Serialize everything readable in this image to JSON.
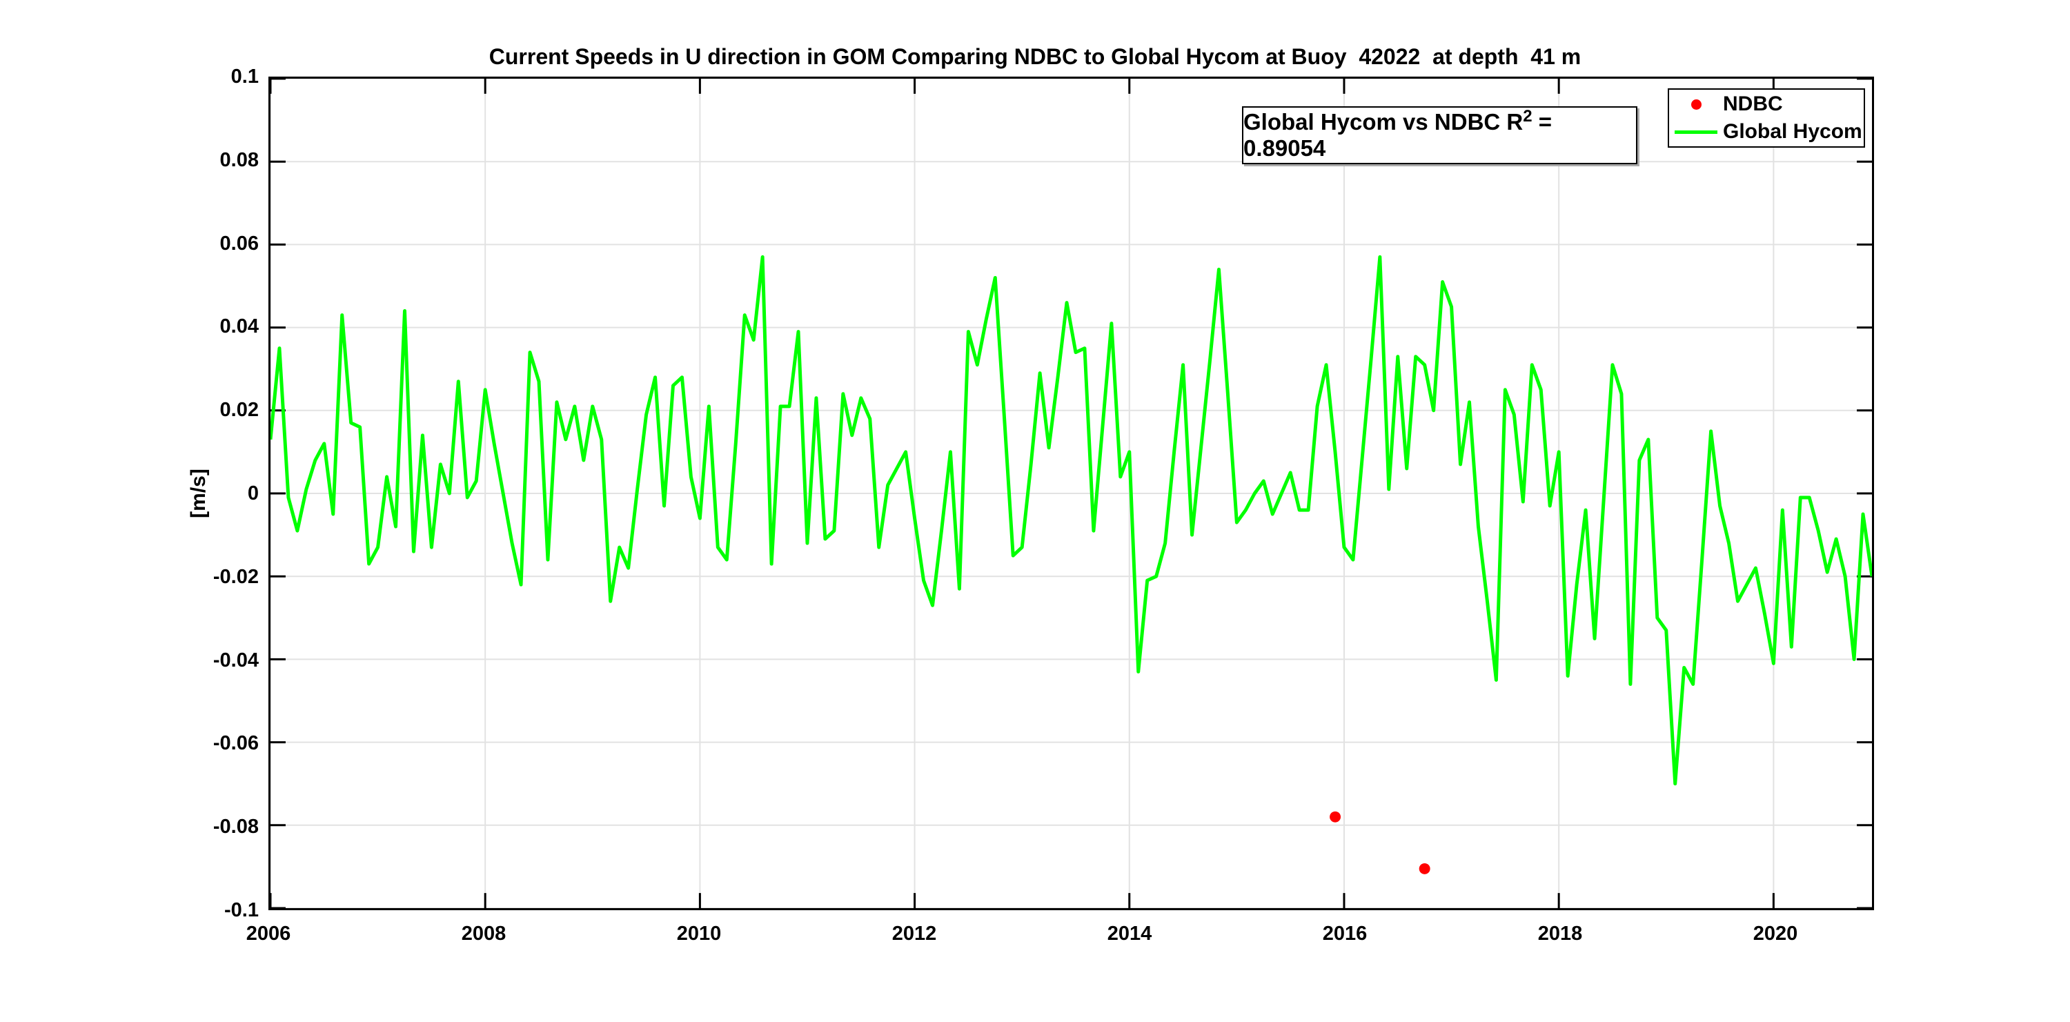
{
  "title": "Current Speeds in U direction in GOM Comparing NDBC to Global Hycom at Buoy  42022  at depth  41 m",
  "annotation": {
    "prefix": "Global Hycom vs NDBC R",
    "sup": "2",
    "suffix": " = 0.89054"
  },
  "legend": {
    "items": [
      {
        "label": "NDBC",
        "marker": "dot",
        "color": "#FF0000"
      },
      {
        "label": "Global Hycom",
        "marker": "line",
        "color": "#00FF00"
      }
    ]
  },
  "colors": {
    "axis": "#000000",
    "grid": "#e2e2e2",
    "hycom": "#00FF00",
    "ndbc": "#FF0000",
    "background": "#ffffff"
  },
  "chart_data": {
    "type": "line",
    "title": "Current Speeds in U direction in GOM Comparing NDBC to Global Hycom at Buoy  42022  at depth  41 m",
    "xlabel": "",
    "ylabel": "[m/s]",
    "xlim": [
      2006,
      2020.9167
    ],
    "ylim": [
      -0.1,
      0.1
    ],
    "grid": true,
    "legend_position": "top-right-inside",
    "xticks": [
      2006,
      2008,
      2010,
      2012,
      2014,
      2016,
      2018,
      2020
    ],
    "xtick_labels": [
      "2006",
      "2008",
      "2010",
      "2012",
      "2014",
      "2016",
      "2018",
      "2020"
    ],
    "yticks": [
      0.1,
      0.08,
      0.06,
      0.04,
      0.02,
      0,
      -0.02,
      -0.04,
      -0.06,
      -0.08,
      -0.1
    ],
    "ytick_labels": [
      "0.1",
      "0.08",
      "0.06",
      "0.04",
      "0.02",
      "0",
      "-0.02",
      "-0.04",
      "-0.06",
      "-0.08",
      "-0.1"
    ],
    "series": [
      {
        "name": "Global Hycom",
        "style": "line",
        "color": "#00FF00",
        "line_width": 5,
        "x_start_year": 2006.0,
        "x_step_years": 0.0833333,
        "values": [
          0.013,
          0.035,
          -0.001,
          -0.009,
          0.001,
          0.008,
          0.012,
          -0.005,
          0.043,
          0.017,
          0.016,
          -0.017,
          -0.013,
          0.004,
          -0.008,
          0.044,
          -0.014,
          0.014,
          -0.013,
          0.007,
          0.0,
          0.027,
          -0.001,
          0.003,
          0.025,
          0.012,
          0.0,
          -0.012,
          -0.022,
          0.034,
          0.027,
          -0.016,
          0.022,
          0.013,
          0.021,
          0.008,
          0.021,
          0.013,
          -0.026,
          -0.013,
          -0.018,
          0.001,
          0.019,
          0.028,
          -0.003,
          0.026,
          0.028,
          0.004,
          -0.006,
          0.021,
          -0.013,
          -0.016,
          0.012,
          0.043,
          0.037,
          0.057,
          -0.017,
          0.021,
          0.021,
          0.039,
          -0.012,
          0.023,
          -0.011,
          -0.009,
          0.024,
          0.014,
          0.023,
          0.018,
          -0.013,
          0.002,
          0.006,
          0.01,
          -0.006,
          -0.021,
          -0.027,
          -0.009,
          0.01,
          -0.023,
          0.039,
          0.031,
          0.042,
          0.052,
          0.019,
          -0.015,
          -0.013,
          0.007,
          0.029,
          0.011,
          0.028,
          0.046,
          0.034,
          0.035,
          -0.009,
          0.016,
          0.041,
          0.004,
          0.01,
          -0.043,
          -0.021,
          -0.02,
          -0.012,
          0.01,
          0.031,
          -0.01,
          0.011,
          0.032,
          0.054,
          0.024,
          -0.007,
          -0.004,
          0.0,
          0.003,
          -0.005,
          0.0,
          0.005,
          -0.004,
          -0.004,
          0.021,
          0.031,
          0.01,
          -0.013,
          -0.016,
          0.008,
          0.032,
          0.057,
          0.001,
          0.033,
          0.006,
          0.033,
          0.031,
          0.02,
          0.051,
          0.045,
          0.007,
          0.022,
          -0.008,
          -0.026,
          -0.045,
          0.025,
          0.019,
          -0.002,
          0.031,
          0.025,
          -0.003,
          0.01,
          -0.044,
          -0.022,
          -0.004,
          -0.035,
          -0.002,
          0.031,
          0.024,
          -0.046,
          0.008,
          0.013,
          -0.03,
          -0.033,
          -0.07,
          -0.042,
          -0.046,
          -0.016,
          0.015,
          -0.003,
          -0.012,
          -0.026,
          -0.022,
          -0.018,
          -0.029,
          -0.041,
          -0.004,
          -0.037,
          -0.001,
          -0.001,
          -0.009,
          -0.019,
          -0.011,
          -0.02,
          -0.04,
          -0.005,
          -0.02
        ]
      },
      {
        "name": "NDBC",
        "style": "scatter",
        "color": "#FF0000",
        "marker_radius": 8,
        "points": [
          {
            "x": 2015.917,
            "y": -0.078
          },
          {
            "x": 2016.75,
            "y": -0.0905
          }
        ]
      }
    ]
  }
}
